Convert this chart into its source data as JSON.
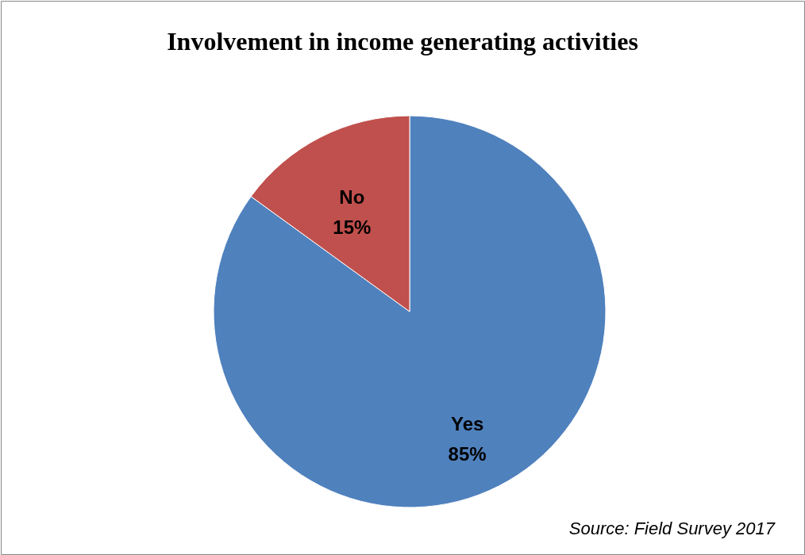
{
  "chart_data": {
    "type": "pie",
    "title": "Involvement in income generating activities",
    "categories": [
      "Yes",
      "No"
    ],
    "values": [
      85,
      15
    ],
    "colors": [
      "#4f81bd",
      "#c0504d"
    ],
    "value_labels": [
      "85%",
      "15%"
    ],
    "annotations": [
      "Source: Field Survey 2017"
    ]
  }
}
